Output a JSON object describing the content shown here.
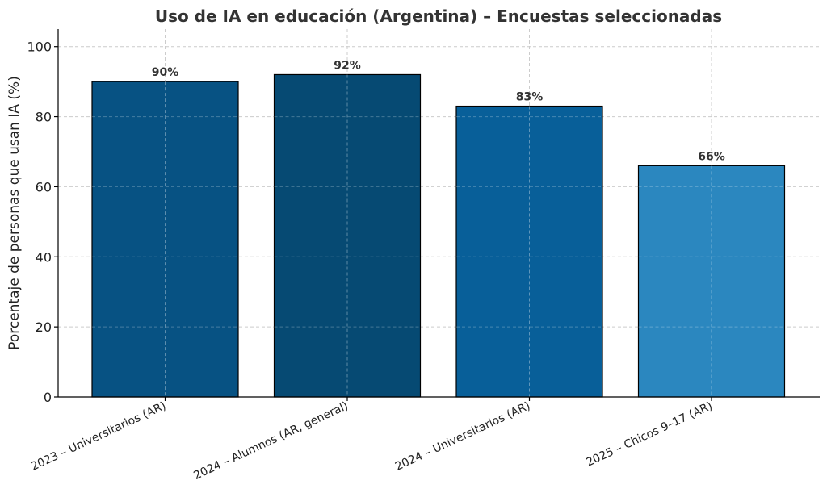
{
  "chart_data": {
    "type": "bar",
    "title": "Uso de IA en educación (Argentina) – Encuestas seleccionadas",
    "xlabel": "",
    "ylabel": "Porcentaje de personas que usan IA (%)",
    "ylim": [
      0,
      105
    ],
    "yticks": [
      0,
      20,
      40,
      60,
      80,
      100
    ],
    "grid": true,
    "categories": [
      "2023 – Universitarios (AR)",
      "2024 – Alumnos (AR, general)",
      "2024 – Universitarios (AR)",
      "2025 – Chicos 9–17 (AR)"
    ],
    "values": [
      90,
      92,
      83,
      66
    ],
    "data_labels": [
      "90%",
      "92%",
      "83%",
      "66%"
    ],
    "colors": [
      "#075283",
      "#064a73",
      "#085f99",
      "#2b87bf"
    ]
  }
}
